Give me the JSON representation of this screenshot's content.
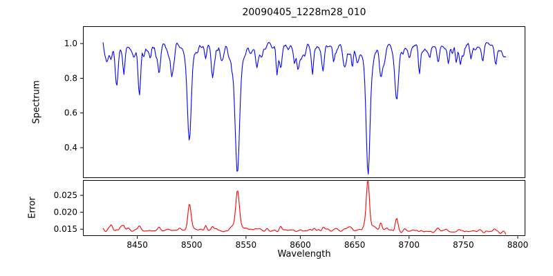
{
  "figure": {
    "background": "#ffffff",
    "spine_color": "#000000",
    "text_color": "#000000"
  },
  "chart_data": {
    "type": "line",
    "title": "20090405_1228m28_010",
    "xlabel": "Wavelength",
    "grid": false,
    "legend": null,
    "xlim": [
      8400,
      8807
    ],
    "x_data_range": [
      8418.5,
      8789
    ],
    "x_step": 0.8,
    "x_ticks": [
      8450,
      8500,
      8550,
      8600,
      8650,
      8700,
      8750,
      8800
    ],
    "x_tick_labels": [
      "8450",
      "8500",
      "8550",
      "8600",
      "8650",
      "8700",
      "8750",
      "8800"
    ],
    "seed": 42,
    "panels": [
      {
        "name": "spectrum",
        "ylabel": "Spectrum",
        "line_color": "#0000ff",
        "ylim": [
          0.225,
          1.1
        ],
        "y_ticks": [
          0.4,
          0.6,
          0.8,
          1.0
        ],
        "y_tick_labels": [
          "0.4",
          "0.6",
          "0.8",
          "1.0"
        ],
        "continuum": 0.985,
        "noise_amp": 0.05,
        "micro_lines": {
          "count": 70,
          "depth_min": 0.01,
          "depth_max": 0.08,
          "sigma_min": 0.6,
          "sigma_max": 1.4
        },
        "absorption_lines": [
          [
            8426,
            0.1,
            1.1
          ],
          [
            8431,
            0.18,
            1.2
          ],
          [
            8438,
            0.1,
            1.0
          ],
          [
            8452,
            0.26,
            1.2
          ],
          [
            8462,
            0.07,
            1.0
          ],
          [
            8470,
            0.12,
            1.1
          ],
          [
            8484,
            0.07,
            1.0
          ],
          [
            8498.02,
            0.46,
            1.6
          ],
          [
            8513,
            0.08,
            1.0
          ],
          [
            8519,
            0.13,
            1.1
          ],
          [
            8542.09,
            0.58,
            1.8
          ],
          [
            8560,
            0.07,
            1.0
          ],
          [
            8582,
            0.13,
            1.2
          ],
          [
            8598,
            0.08,
            1.0
          ],
          [
            8611,
            0.1,
            1.1
          ],
          [
            8621,
            0.14,
            1.2
          ],
          [
            8648,
            0.08,
            1.0
          ],
          [
            8662.14,
            0.57,
            1.7
          ],
          [
            8674,
            0.12,
            1.1
          ],
          [
            8688.6,
            0.27,
            1.6
          ],
          [
            8710,
            0.09,
            1.1
          ],
          [
            8727,
            0.1,
            1.1
          ],
          [
            8736,
            0.08,
            1.0
          ],
          [
            8747,
            0.1,
            1.1
          ],
          [
            8757,
            0.08,
            1.0
          ],
          [
            8768,
            0.09,
            1.0
          ],
          [
            8780,
            0.07,
            1.0
          ]
        ],
        "line_wings": [
          [
            8498.02,
            0.08,
            4.5
          ],
          [
            8542.09,
            0.14,
            5.0
          ],
          [
            8662.14,
            0.14,
            5.0
          ],
          [
            8688.6,
            0.05,
            3.5
          ]
        ]
      },
      {
        "name": "error",
        "ylabel": "Error",
        "line_color": "#ff0000",
        "ylim": [
          0.013,
          0.0295
        ],
        "y_ticks": [
          0.015,
          0.02,
          0.025
        ],
        "y_tick_labels": [
          "0.015",
          "0.020",
          "0.025"
        ],
        "baseline": 0.0146,
        "noise_amp": 0.0008,
        "micro_bumps": {
          "count": 40,
          "h_min": 0.0001,
          "h_max": 0.0006,
          "sigma_min": 0.8,
          "sigma_max": 1.6
        },
        "peaks": [
          [
            8426,
            0.001,
            1.3
          ],
          [
            8437,
            0.0018,
            1.3
          ],
          [
            8452,
            0.001,
            1.2
          ],
          [
            8470,
            0.0006,
            1.1
          ],
          [
            8498.02,
            0.0074,
            1.4
          ],
          [
            8513,
            0.0013,
            1.0
          ],
          [
            8519,
            0.0012,
            1.0
          ],
          [
            8542.09,
            0.0102,
            1.5
          ],
          [
            8582,
            0.0006,
            1.0
          ],
          [
            8621,
            0.0007,
            1.0
          ],
          [
            8662.14,
            0.0134,
            1.4
          ],
          [
            8674,
            0.0018,
            1.0
          ],
          [
            8688.6,
            0.0036,
            1.2
          ],
          [
            8727,
            0.0007,
            1.0
          ]
        ],
        "peak_wings": [
          [
            8498.02,
            0.0008,
            4.0
          ],
          [
            8542.09,
            0.0015,
            5.0
          ],
          [
            8662.14,
            0.0015,
            5.0
          ]
        ],
        "tail_slope_start": 8700,
        "tail_slope": 4.5e-06
      }
    ]
  }
}
